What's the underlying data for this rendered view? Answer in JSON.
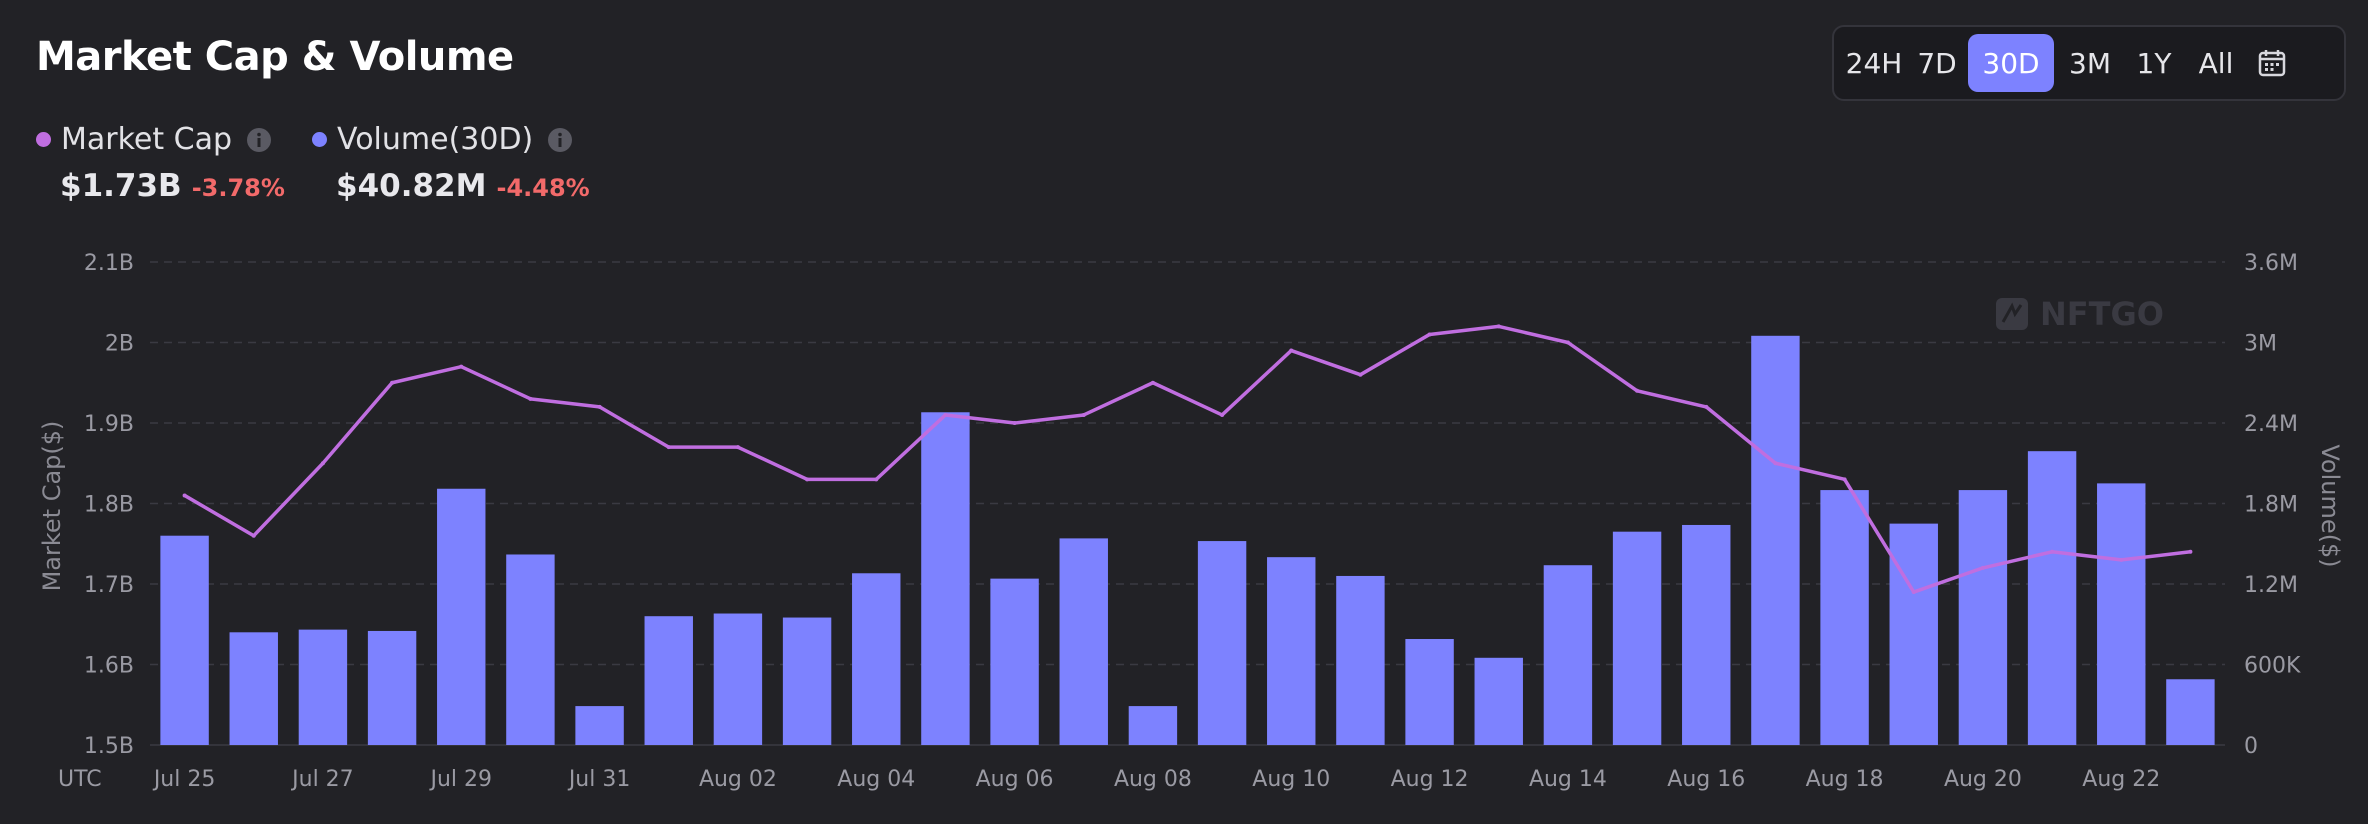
{
  "header": {
    "title": "Market Cap & Volume"
  },
  "range_selector": {
    "options": [
      "24H",
      "7D",
      "30D",
      "3M",
      "1Y",
      "All"
    ],
    "active": "30D",
    "calendar_icon": "calendar-icon"
  },
  "legend": [
    {
      "name": "Market Cap",
      "color": "#c06ee0",
      "value": "$1.73B",
      "change": "-3.78%",
      "icon": "info-icon"
    },
    {
      "name": "Volume(30D)",
      "color": "#7d82ff",
      "value": "$40.82M",
      "change": "-4.48%",
      "icon": "info-icon"
    }
  ],
  "watermark": "NFTGO",
  "chart_data": {
    "type": "bar",
    "x_prefix": "UTC",
    "categories": [
      "Jul 25",
      "Jul 26",
      "Jul 27",
      "Jul 28",
      "Jul 29",
      "Jul 30",
      "Jul 31",
      "Aug 01",
      "Aug 02",
      "Aug 03",
      "Aug 04",
      "Aug 05",
      "Aug 06",
      "Aug 07",
      "Aug 08",
      "Aug 09",
      "Aug 10",
      "Aug 11",
      "Aug 12",
      "Aug 13",
      "Aug 14",
      "Aug 15",
      "Aug 16",
      "Aug 17",
      "Aug 18",
      "Aug 19",
      "Aug 20",
      "Aug 21",
      "Aug 22",
      "Aug 23"
    ],
    "x_tick_labels": [
      "Jul 25",
      "Jul 27",
      "Jul 29",
      "Jul 31",
      "Aug 02",
      "Aug 04",
      "Aug 06",
      "Aug 08",
      "Aug 10",
      "Aug 12",
      "Aug 14",
      "Aug 16",
      "Aug 18",
      "Aug 20",
      "Aug 22"
    ],
    "series": [
      {
        "name": "Volume(30D)",
        "type": "bar",
        "axis": "right",
        "values": [
          1560000,
          840000,
          860000,
          850000,
          1910000,
          1420000,
          290000,
          960000,
          980000,
          950000,
          1280000,
          2480000,
          1240000,
          1540000,
          290000,
          1520000,
          1400000,
          1260000,
          790000,
          650000,
          1340000,
          1590000,
          1640000,
          3050000,
          1900000,
          1650000,
          1900000,
          2190000,
          1950000,
          490000
        ]
      },
      {
        "name": "Market Cap",
        "type": "line",
        "axis": "left",
        "values": [
          1.81,
          1.76,
          1.85,
          1.95,
          1.97,
          1.93,
          1.92,
          1.87,
          1.87,
          1.83,
          1.83,
          1.91,
          1.9,
          1.91,
          1.95,
          1.91,
          1.99,
          1.96,
          2.01,
          2.02,
          2.0,
          1.94,
          1.92,
          1.85,
          1.83,
          1.69,
          1.72,
          1.74,
          1.73,
          1.74
        ]
      }
    ],
    "y_left": {
      "label": "Market Cap($)",
      "range": [
        1.5,
        2.1
      ],
      "ticks": [
        "1.5B",
        "1.6B",
        "1.7B",
        "1.8B",
        "1.9B",
        "2B",
        "2.1B"
      ]
    },
    "y_right": {
      "label": "Volume($)",
      "range": [
        0,
        3600000
      ],
      "ticks": [
        "0",
        "600K",
        "1.2M",
        "1.8M",
        "2.4M",
        "3M",
        "3.6M"
      ]
    },
    "grid": true
  }
}
